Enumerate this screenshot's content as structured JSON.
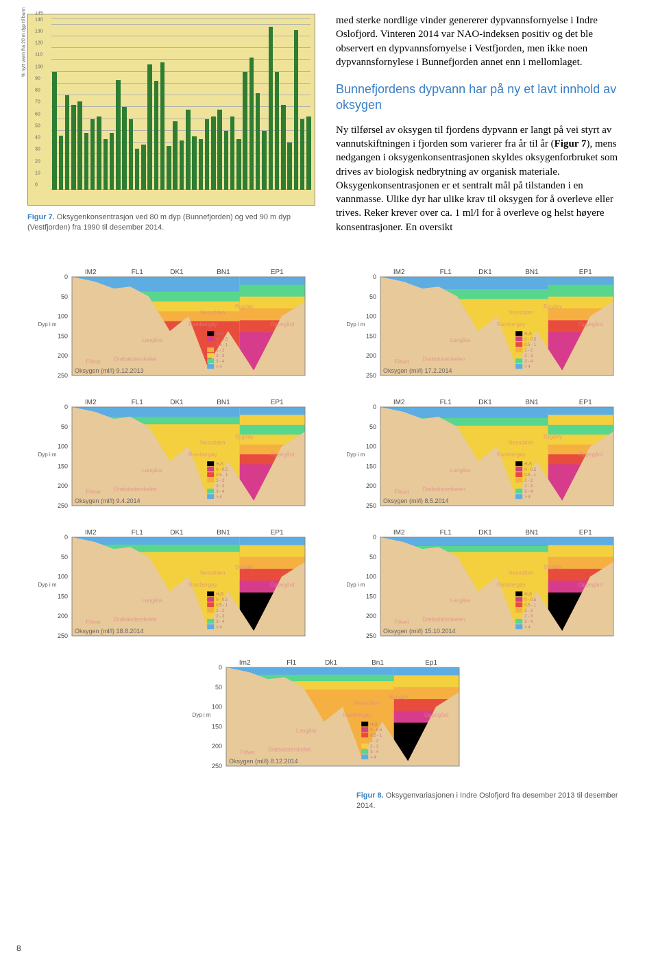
{
  "page_number": "8",
  "bar_chart": {
    "type": "bar",
    "y_axis_title": "% nytt vann fra 20 m dyp til bunn",
    "ylim": [
      0,
      145
    ],
    "ytick_step": 10,
    "yticks": [
      0,
      10,
      20,
      30,
      40,
      50,
      60,
      70,
      80,
      90,
      100,
      110,
      120,
      130,
      140,
      145
    ],
    "bar_color": "#2e7d32",
    "background_color": "#efe39a",
    "grid_color": "#b0b0b0",
    "values": [
      100,
      46,
      80,
      72,
      75,
      48,
      60,
      62,
      43,
      48,
      93,
      70,
      60,
      35,
      38,
      106,
      92,
      108,
      37,
      58,
      42,
      68,
      45,
      43,
      60,
      62,
      68,
      50,
      62,
      43,
      100,
      112,
      82,
      50,
      138,
      100,
      72,
      40,
      135,
      60,
      62
    ]
  },
  "fig7_caption_num": "Figur 7.",
  "fig7_caption": " Oksygenkonsentrasjon ved 80 m dyp (Bunnefjorden) og ved 90 m dyp (Vestfjorden) fra 1990 til desember 2014.",
  "para1": "med sterke nordlige vinder genererer dypvannsfornyelse i Indre Oslofjord. Vinteren 2014 var NAO-indeksen positiv og det ble observert en dypvannsfornyelse i Vestfjorden, men ikke noen dypvannsfornylese i Bunnefjorden annet enn i mellomlaget.",
  "heading": "Bunnefjordens dypvann har på ny et lavt innhold av oksygen",
  "para2a": "Ny tilførsel av oksygen til fjordens dypvann er langt på vei styrt av vannutskiftningen i fjorden som varierer fra år til år (",
  "para2b": "Figur 7",
  "para2c": "), mens nedgangen i oksygenkonsentrasjonen skyldes oksygenforbruket som drives av biologisk nedbrytning av organisk materiale. Oksygenkonsentrasjonen er et sentralt mål på tilstanden i en vannmasse. Ulike dyr har ulike krav til oksygen for å overleve eller trives. Reker krever over ca. 1 ml/l for å overleve og helst høyere konsentrasjoner. En oversikt",
  "transect": {
    "stations": [
      "IM2",
      "FL1",
      "DK1",
      "BN1",
      "EP1"
    ],
    "stations_lc": [
      "Im2",
      "Fl1",
      "Dk1",
      "Bn1",
      "Ep1"
    ],
    "depths": [
      0,
      50,
      100,
      150,
      200,
      250
    ],
    "ylabel": "Dyp i m",
    "legend_title": "",
    "legend_items": [
      {
        "label": "H₂S",
        "color": "#000000"
      },
      {
        "label": "0 - 0.5",
        "color": "#d73c8c"
      },
      {
        "label": "0.5 - 1",
        "color": "#e84c3d"
      },
      {
        "label": "1 - 2",
        "color": "#f5b041"
      },
      {
        "label": "2 - 3",
        "color": "#f4d03f"
      },
      {
        "label": "3 - 4",
        "color": "#58d68d"
      },
      {
        "label": "> 4",
        "color": "#5dade2"
      }
    ],
    "overlay_labels": [
      "Nesodden",
      "Bygdøy",
      "Rambergøy",
      "Langåra",
      "Oppegård",
      "Drøbaksterskelen",
      "Filtvet"
    ],
    "bathymetry_top": [
      0.0,
      0.05,
      0.12,
      0.1,
      0.2,
      0.55,
      0.4,
      0.9,
      0.55,
      0.95,
      0.4,
      0.25
    ],
    "bathymetry_x": [
      0.0,
      0.1,
      0.18,
      0.25,
      0.33,
      0.42,
      0.5,
      0.58,
      0.67,
      0.78,
      0.9,
      1.0
    ],
    "panels": [
      {
        "title": "Oksygen (ml/l) 9.12.2013",
        "fills": [
          {
            "color": "#5dade2",
            "cover": 0.0
          },
          {
            "color": "#58d68d",
            "cover": 0.3
          },
          {
            "color": "#f4d03f",
            "cover": 0.5
          },
          {
            "color": "#f5b041",
            "cover": 0.7
          },
          {
            "color": "#e84c3d",
            "cover": 0.9
          }
        ],
        "right_stack": [
          "#58d68d",
          "#f4d03f",
          "#f5b041",
          "#e84c3d",
          "#d73c8c"
        ]
      },
      {
        "title": "Oksygen (ml/l) 17.2.2014",
        "fills": [
          {
            "color": "#5dade2",
            "cover": 0.0
          },
          {
            "color": "#58d68d",
            "cover": 0.25
          },
          {
            "color": "#f4d03f",
            "cover": 0.45
          }
        ],
        "right_stack": [
          "#58d68d",
          "#f4d03f",
          "#f5b041",
          "#e84c3d",
          "#d73c8c"
        ]
      },
      {
        "title": "Oksygen (ml/l) 9.4.2014",
        "fills": [
          {
            "color": "#5dade2",
            "cover": 0.0
          },
          {
            "color": "#58d68d",
            "cover": 0.2
          },
          {
            "color": "#f4d03f",
            "cover": 0.35
          }
        ],
        "right_stack": [
          "#f4d03f",
          "#58d68d",
          "#f4d03f",
          "#f5b041",
          "#e84c3d",
          "#d73c8c"
        ]
      },
      {
        "title": "Oksygen (ml/l) 8.5.2014",
        "fills": [
          {
            "color": "#5dade2",
            "cover": 0.0
          },
          {
            "color": "#58d68d",
            "cover": 0.22
          },
          {
            "color": "#f4d03f",
            "cover": 0.38
          }
        ],
        "right_stack": [
          "#f4d03f",
          "#58d68d",
          "#f4d03f",
          "#f5b041",
          "#e84c3d",
          "#d73c8c"
        ]
      },
      {
        "title": "Oksygen (ml/l) 18.8.2014",
        "fills": [
          {
            "color": "#5dade2",
            "cover": 0.0
          },
          {
            "color": "#58d68d",
            "cover": 0.15
          },
          {
            "color": "#f4d03f",
            "cover": 0.3
          }
        ],
        "right_stack": [
          "#f4d03f",
          "#f5b041",
          "#e84c3d",
          "#d73c8c",
          "#000000"
        ]
      },
      {
        "title": "Oksygen (ml/l) 15.10.2014",
        "fills": [
          {
            "color": "#5dade2",
            "cover": 0.0
          },
          {
            "color": "#58d68d",
            "cover": 0.18
          },
          {
            "color": "#f4d03f",
            "cover": 0.3
          }
        ],
        "right_stack": [
          "#f4d03f",
          "#f5b041",
          "#e84c3d",
          "#d73c8c",
          "#000000"
        ]
      },
      {
        "title": "Oksygen (ml/l) 8.12.2014",
        "stations_variant": "lc",
        "fills": [
          {
            "color": "#5dade2",
            "cover": 0.0
          },
          {
            "color": "#58d68d",
            "cover": 0.15
          },
          {
            "color": "#f4d03f",
            "cover": 0.28
          },
          {
            "color": "#f5b041",
            "cover": 0.45
          }
        ],
        "right_stack": [
          "#f4d03f",
          "#f5b041",
          "#e84c3d",
          "#d73c8c",
          "#000000"
        ]
      }
    ]
  },
  "fig8_caption_num": "Figur 8.",
  "fig8_caption": " Oksygenvariasjonen i Indre Oslofjord fra desember 2013 til desember 2014."
}
